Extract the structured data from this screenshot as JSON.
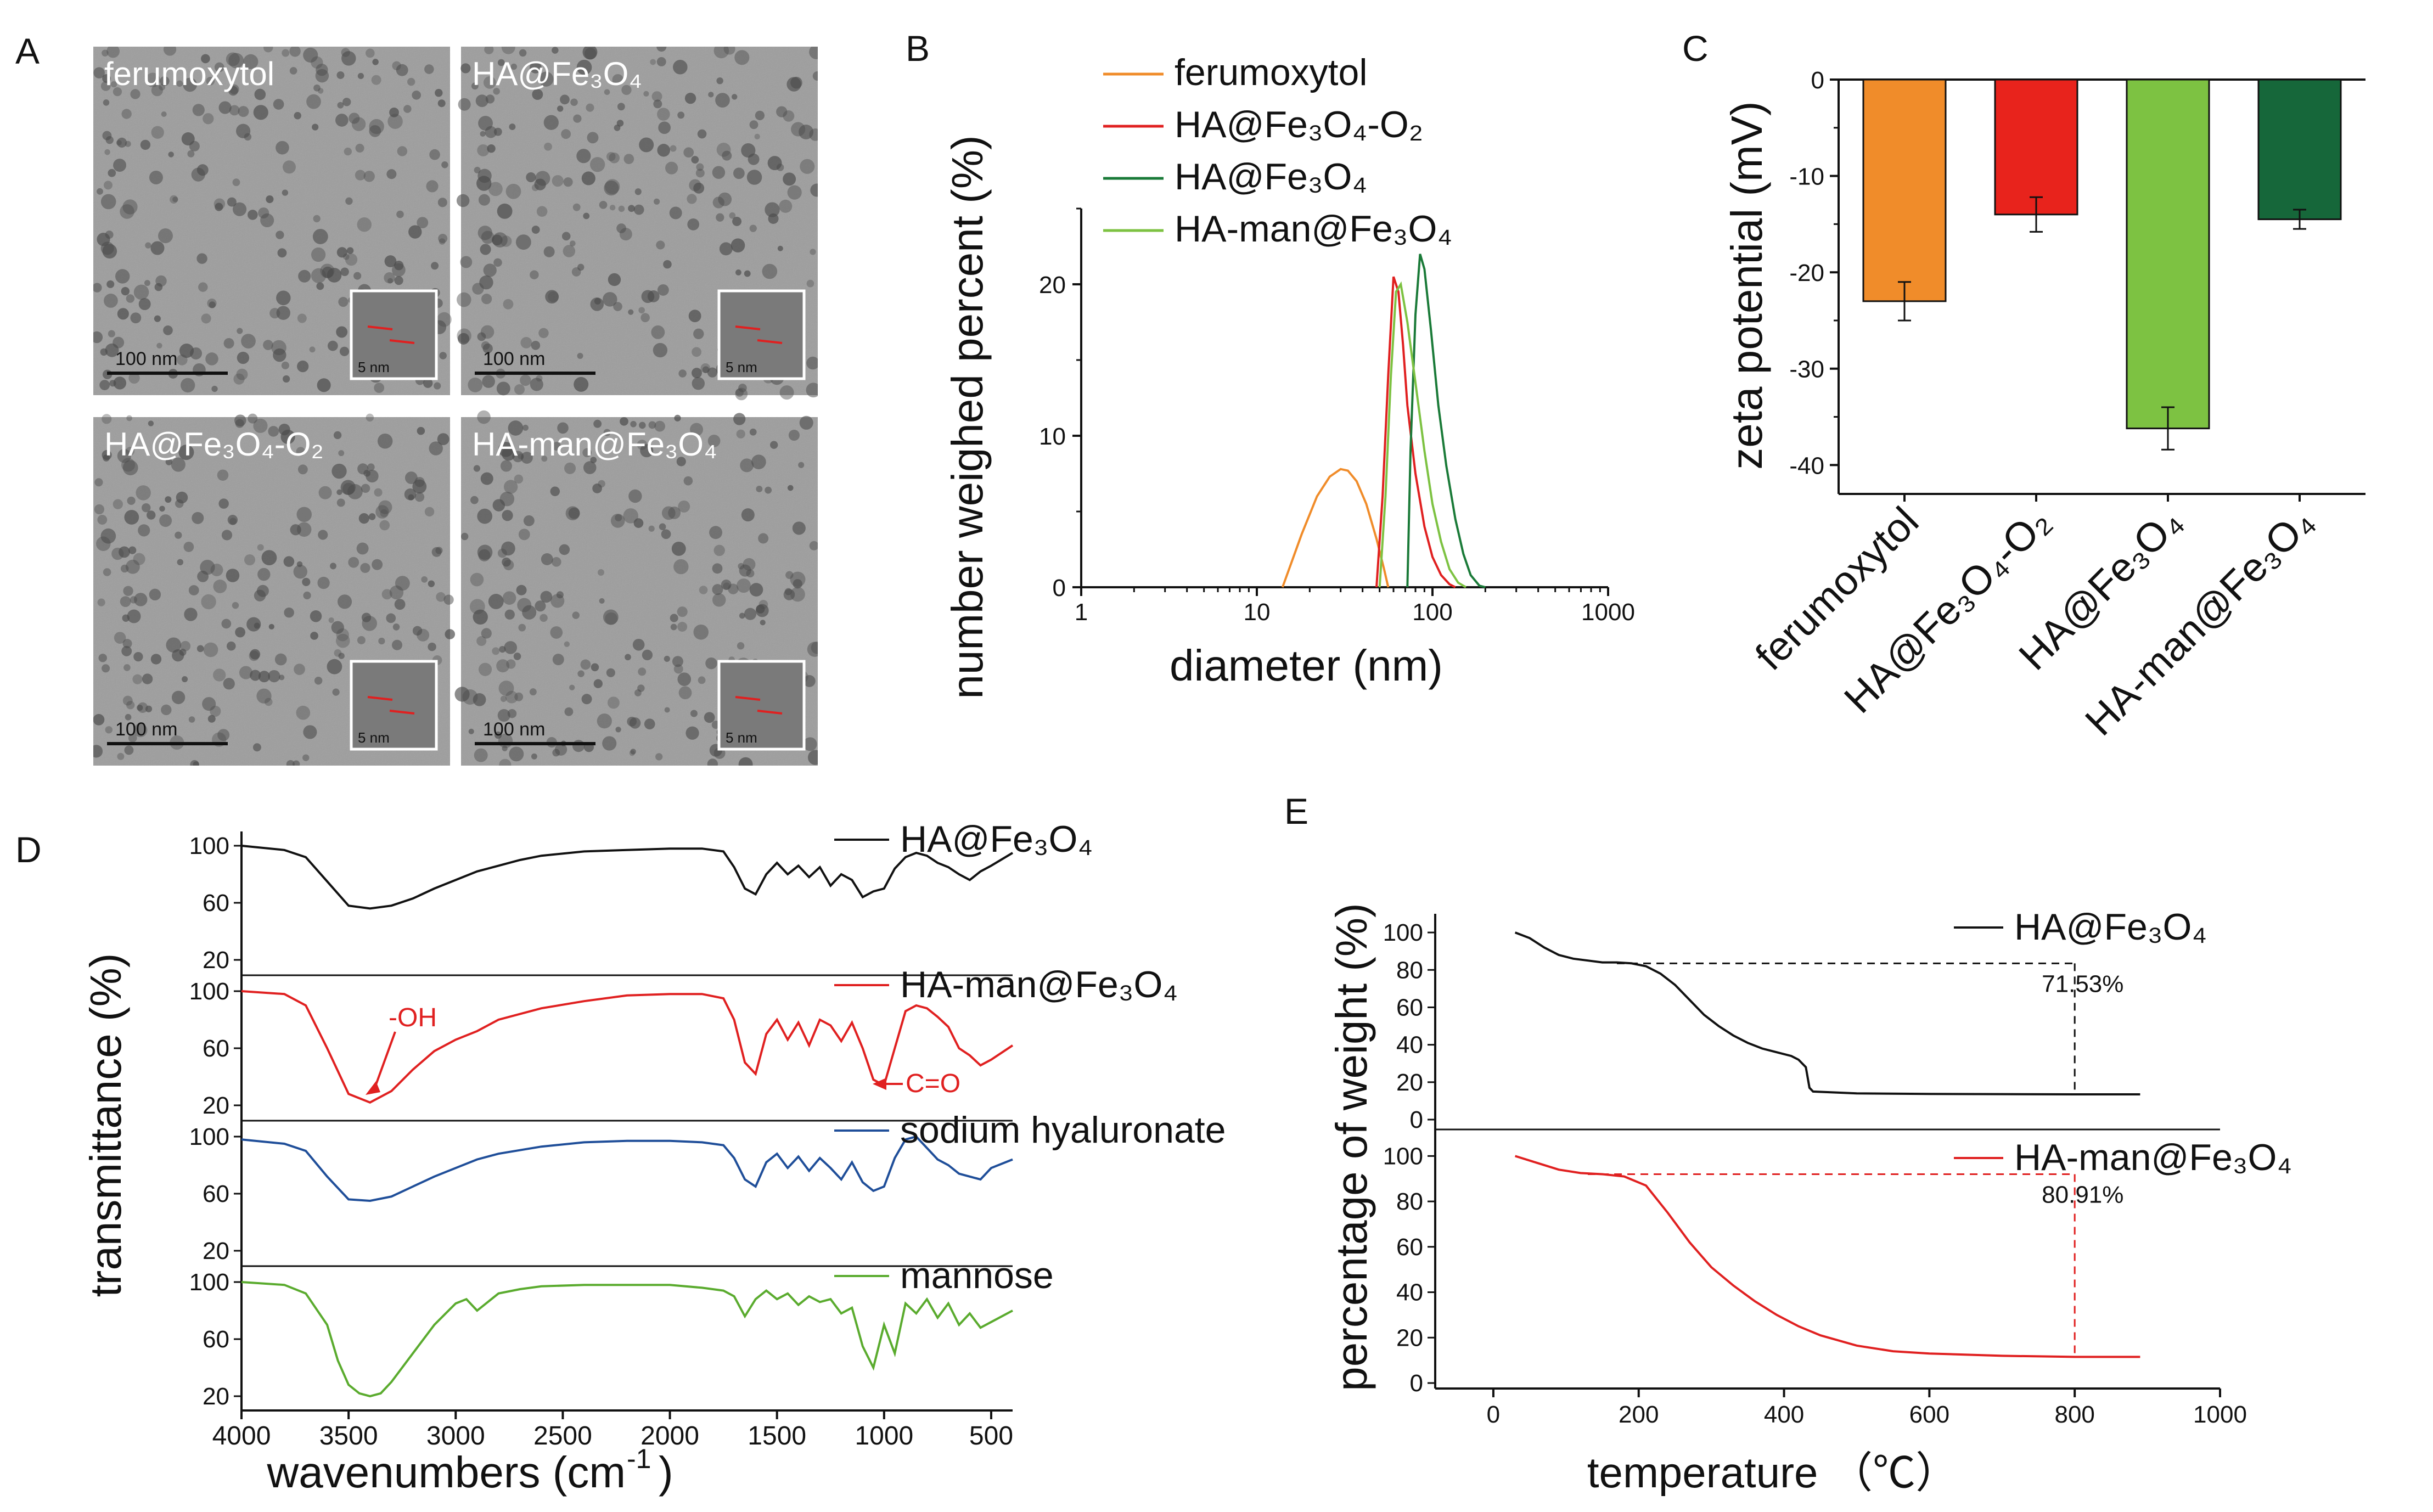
{
  "chart_data": [
    {
      "panel": "A",
      "type": "image-grid",
      "images": [
        {
          "label": "ferumoxytol",
          "scale_bar": "100 nm",
          "inset_scale": "5 nm"
        },
        {
          "label": "HA@Fe₃O₄",
          "scale_bar": "100 nm",
          "inset_scale": "5 nm"
        },
        {
          "label": "HA@Fe₃O₄-O₂",
          "scale_bar": "100 nm",
          "inset_scale": "5 nm"
        },
        {
          "label": "HA-man@Fe₃O₄",
          "scale_bar": "100 nm",
          "inset_scale": "5 nm"
        }
      ]
    },
    {
      "panel": "B",
      "type": "line",
      "xscale": "log",
      "xlabel": "diameter (nm)",
      "ylabel": "number weighed percent (%)",
      "xlim": [
        1,
        1000
      ],
      "ylim": [
        0,
        25
      ],
      "xticks": [
        "1",
        "10",
        "100",
        "1000"
      ],
      "yticks": [
        "0",
        "10",
        "20"
      ],
      "legend_position": "top-right",
      "series": [
        {
          "name": "ferumoxytol",
          "color": "#f08c2a",
          "x": [
            14,
            18,
            22,
            26,
            30,
            33,
            37,
            42,
            48,
            53,
            56
          ],
          "y": [
            0,
            3.5,
            6.0,
            7.3,
            7.8,
            7.7,
            7.0,
            5.5,
            3.2,
            1.2,
            0
          ]
        },
        {
          "name": "HA@Fe₃O₄-O₂",
          "color": "#e02020",
          "x": [
            48,
            52,
            56,
            60,
            64,
            68,
            72,
            80,
            90,
            100,
            112,
            125,
            135
          ],
          "y": [
            0,
            6,
            14,
            20.5,
            19.5,
            16,
            12,
            7.5,
            4.0,
            2.0,
            0.8,
            0.2,
            0
          ]
        },
        {
          "name": "HA@Fe₃O₄",
          "color": "#1a7a38",
          "x": [
            72,
            75,
            80,
            85,
            90,
            98,
            108,
            120,
            135,
            150,
            165,
            185,
            200
          ],
          "y": [
            0,
            9,
            18,
            22,
            21,
            17,
            12,
            8,
            4.5,
            2.2,
            0.8,
            0.1,
            0
          ]
        },
        {
          "name": "HA-man@Fe₃O₄",
          "color": "#7dc242",
          "x": [
            50,
            54,
            58,
            62,
            66,
            72,
            80,
            90,
            100,
            112,
            125,
            140,
            155
          ],
          "y": [
            0,
            6,
            14,
            19.5,
            20,
            17.5,
            13.5,
            9,
            5.5,
            3.0,
            1.2,
            0.3,
            0
          ]
        }
      ]
    },
    {
      "panel": "C",
      "type": "bar",
      "ylabel": "zeta potential (mV)",
      "ylim": [
        -43,
        0
      ],
      "yticks": [
        "0",
        "-10",
        "-20",
        "-30",
        "-40"
      ],
      "categories": [
        "ferumoxytol",
        "HA@Fe₃O₄-O₂",
        "HA@Fe₃O₄",
        "HA-man@Fe₃O₄"
      ],
      "values": [
        -23.0,
        -14.0,
        -36.2,
        -14.5
      ],
      "errors": [
        2.0,
        1.8,
        2.2,
        1.0
      ],
      "colors": [
        "#f08c2a",
        "#e8231c",
        "#7dc242",
        "#16673a"
      ]
    },
    {
      "panel": "D",
      "type": "line",
      "xlabel_main": "wavenumbers (cm",
      "xlabel_sup": "-1",
      "xlabel_end": ")",
      "ylabel": "transmittance (%)",
      "xlim": [
        4000,
        400
      ],
      "xticks": [
        "4000",
        "3500",
        "3000",
        "2500",
        "2000",
        "1500",
        "1000",
        "500"
      ],
      "yticks": [
        "100",
        "60",
        "20"
      ],
      "annotations": [
        "-OH",
        "C=O"
      ],
      "series": [
        {
          "name": "HA@Fe₃O₄",
          "color": "#111111",
          "x": [
            4000,
            3800,
            3700,
            3600,
            3500,
            3400,
            3300,
            3200,
            3100,
            3000,
            2900,
            2800,
            2700,
            2600,
            2400,
            2200,
            2000,
            1850,
            1750,
            1700,
            1650,
            1600,
            1550,
            1500,
            1450,
            1400,
            1350,
            1300,
            1250,
            1200,
            1150,
            1100,
            1050,
            1000,
            950,
            900,
            850,
            800,
            750,
            700,
            650,
            600,
            550,
            500,
            400
          ],
          "y": [
            100,
            97,
            92,
            75,
            58,
            56,
            58,
            63,
            70,
            76,
            82,
            86,
            90,
            93,
            96,
            97,
            98,
            98,
            96,
            85,
            70,
            66,
            80,
            88,
            80,
            86,
            78,
            85,
            72,
            80,
            76,
            64,
            68,
            70,
            84,
            92,
            95,
            93,
            88,
            85,
            80,
            76,
            82,
            86,
            95
          ]
        },
        {
          "name": "HA-man@Fe₃O₄",
          "color": "#e02020",
          "x": [
            4000,
            3800,
            3700,
            3600,
            3500,
            3400,
            3300,
            3200,
            3100,
            3000,
            2900,
            2800,
            2600,
            2400,
            2200,
            2000,
            1850,
            1750,
            1700,
            1650,
            1600,
            1550,
            1500,
            1450,
            1400,
            1350,
            1300,
            1250,
            1200,
            1150,
            1100,
            1050,
            1000,
            950,
            900,
            850,
            800,
            750,
            700,
            650,
            600,
            550,
            500,
            400
          ],
          "y": [
            100,
            98,
            90,
            60,
            28,
            22,
            30,
            45,
            58,
            66,
            72,
            80,
            88,
            93,
            97,
            98,
            98,
            95,
            80,
            50,
            42,
            70,
            80,
            66,
            78,
            62,
            80,
            76,
            65,
            78,
            60,
            38,
            34,
            60,
            86,
            90,
            88,
            82,
            75,
            60,
            55,
            48,
            52,
            62
          ]
        },
        {
          "name": "sodium hyaluronate",
          "color": "#1f4e99",
          "x": [
            4000,
            3800,
            3700,
            3600,
            3500,
            3400,
            3300,
            3200,
            3100,
            3000,
            2900,
            2800,
            2600,
            2400,
            2200,
            2000,
            1850,
            1750,
            1700,
            1650,
            1600,
            1550,
            1500,
            1450,
            1400,
            1350,
            1300,
            1250,
            1200,
            1150,
            1100,
            1050,
            1000,
            950,
            900,
            850,
            800,
            750,
            700,
            650,
            600,
            550,
            500,
            400
          ],
          "y": [
            98,
            95,
            90,
            72,
            56,
            55,
            58,
            65,
            72,
            78,
            84,
            88,
            93,
            96,
            97,
            97,
            96,
            94,
            85,
            70,
            65,
            82,
            88,
            78,
            86,
            76,
            85,
            78,
            70,
            82,
            68,
            62,
            65,
            85,
            98,
            100,
            92,
            84,
            80,
            74,
            72,
            70,
            78,
            84
          ]
        },
        {
          "name": "mannose",
          "color": "#5aab2e",
          "x": [
            4000,
            3800,
            3700,
            3600,
            3550,
            3500,
            3450,
            3400,
            3350,
            3300,
            3200,
            3100,
            3000,
            2950,
            2900,
            2850,
            2800,
            2700,
            2600,
            2400,
            2200,
            2000,
            1850,
            1750,
            1700,
            1650,
            1600,
            1550,
            1500,
            1450,
            1400,
            1350,
            1300,
            1250,
            1200,
            1150,
            1100,
            1050,
            1000,
            950,
            900,
            850,
            800,
            750,
            700,
            650,
            600,
            550,
            500,
            400
          ],
          "y": [
            100,
            98,
            92,
            70,
            45,
            28,
            22,
            20,
            22,
            30,
            50,
            70,
            85,
            88,
            80,
            86,
            92,
            95,
            97,
            98,
            98,
            98,
            96,
            94,
            90,
            76,
            88,
            94,
            88,
            92,
            84,
            90,
            86,
            88,
            78,
            82,
            55,
            40,
            70,
            50,
            85,
            78,
            88,
            75,
            85,
            70,
            78,
            68,
            72,
            80
          ]
        }
      ]
    },
    {
      "panel": "E",
      "type": "line",
      "xlabel": "temperature （℃）",
      "ylabel": "percentage of weight (%)",
      "xlim": [
        -80,
        1000
      ],
      "ylim": [
        0,
        110
      ],
      "xticks": [
        "0",
        "200",
        "400",
        "600",
        "800",
        "1000"
      ],
      "yticks": [
        "0",
        "20",
        "40",
        "60",
        "80",
        "100"
      ],
      "annotations": [
        "71.53%",
        "80.91%"
      ],
      "series": [
        {
          "name": "HA@Fe₃O₄",
          "color": "#111111",
          "x": [
            30,
            50,
            70,
            90,
            110,
            130,
            150,
            170,
            190,
            210,
            230,
            250,
            270,
            290,
            310,
            330,
            350,
            370,
            390,
            410,
            420,
            430,
            435,
            440,
            500,
            600,
            700,
            800,
            890
          ],
          "y": [
            100,
            97,
            92,
            88,
            86,
            85,
            84,
            84,
            83.5,
            82,
            78,
            72,
            64,
            56,
            50,
            45,
            41,
            38,
            36,
            34,
            32,
            28,
            17,
            15,
            14,
            13.7,
            13.6,
            13.5,
            13.5
          ]
        },
        {
          "name": "HA-man@Fe₃O₄",
          "color": "#e02020",
          "x": [
            30,
            60,
            90,
            120,
            150,
            180,
            210,
            240,
            270,
            300,
            330,
            360,
            390,
            420,
            450,
            500,
            550,
            600,
            700,
            800,
            890
          ],
          "y": [
            100,
            97,
            94,
            92.5,
            92,
            91,
            87,
            75,
            62,
            51,
            43,
            36,
            30,
            25,
            21,
            16.5,
            14,
            13,
            12,
            11.5,
            11.5
          ]
        }
      ]
    }
  ]
}
